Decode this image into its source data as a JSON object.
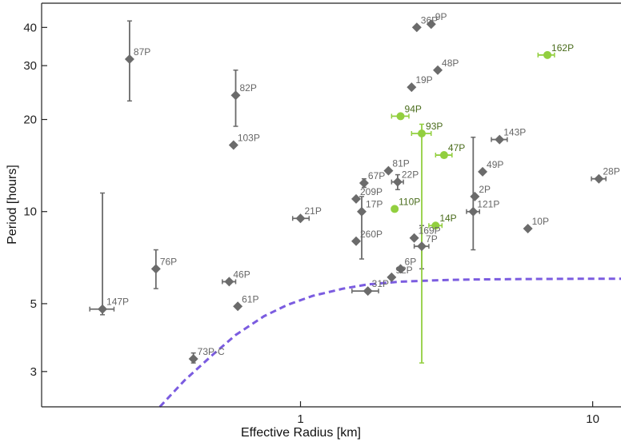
{
  "chart_data": {
    "type": "scatter",
    "xlabel": "Effective Radius [km]",
    "ylabel": "Period [hours]",
    "x_scale": "log",
    "y_scale": "log",
    "xlim": [
      0.13,
      12.5
    ],
    "ylim": [
      2.3,
      48
    ],
    "x_ticks": [
      {
        "value": 1,
        "label": "1"
      },
      {
        "value": 10,
        "label": "10"
      }
    ],
    "y_ticks": [
      {
        "value": 3,
        "label": "3"
      },
      {
        "value": 5,
        "label": "5"
      },
      {
        "value": 10,
        "label": "10"
      },
      {
        "value": 20,
        "label": "20"
      },
      {
        "value": 30,
        "label": "30"
      },
      {
        "value": 40,
        "label": "40"
      }
    ],
    "colors": {
      "gray_series": "#6b6b6b",
      "gray_label": "#666666",
      "green_series": "#92cf3f",
      "green_label": "#4a6c1c",
      "curve": "#7b5ce0"
    },
    "series": [
      {
        "marker": "diamond",
        "color": "#6b6b6b",
        "points": [
          {
            "label": "87P",
            "x": 0.26,
            "y": 31.5,
            "yerr": [
              23,
              42
            ]
          },
          {
            "label": "82P",
            "x": 0.6,
            "y": 24,
            "yerr": [
              19,
              29
            ]
          },
          {
            "label": "103P",
            "x": 0.59,
            "y": 16.5
          },
          {
            "label": "147P",
            "x": 0.21,
            "y": 4.8,
            "xerr": [
              0.19,
              0.23
            ],
            "yerr": [
              4.6,
              11.5
            ]
          },
          {
            "label": "76P",
            "x": 0.32,
            "y": 6.5,
            "yerr": [
              5.6,
              7.5
            ]
          },
          {
            "label": "46P",
            "x": 0.57,
            "y": 5.9,
            "xerr": [
              0.54,
              0.6
            ]
          },
          {
            "label": "61P",
            "x": 0.61,
            "y": 4.9
          },
          {
            "label": "73P-C",
            "x": 0.43,
            "y": 3.3,
            "yerr": [
              3.2,
              3.45
            ]
          },
          {
            "label": "21P",
            "x": 1.0,
            "y": 9.5,
            "xerr": [
              0.94,
              1.07
            ]
          },
          {
            "label": "209P",
            "x": 1.55,
            "y": 11
          },
          {
            "label": "67P",
            "x": 1.65,
            "y": 12.4,
            "yerr": [
              12.0,
              12.8
            ]
          },
          {
            "label": "17P",
            "x": 1.62,
            "y": 10,
            "yerr": [
              7.0,
              11.2
            ]
          },
          {
            "label": "260P",
            "x": 1.55,
            "y": 8
          },
          {
            "label": "81P",
            "x": 2.0,
            "y": 13.6
          },
          {
            "label": "22P",
            "x": 2.15,
            "y": 12.5,
            "xerr": [
              2.05,
              2.25
            ],
            "yerr": [
              11.8,
              13.2
            ]
          },
          {
            "label": "31P",
            "x": 1.7,
            "y": 5.5,
            "xerr": [
              1.5,
              1.85
            ]
          },
          {
            "label": "92P",
            "x": 2.05,
            "y": 6.1
          },
          {
            "label": "6P",
            "x": 2.2,
            "y": 6.5
          },
          {
            "label": "169P",
            "x": 2.45,
            "y": 8.2
          },
          {
            "label": "7P",
            "x": 2.6,
            "y": 7.7,
            "xerr": [
              2.45,
              2.75
            ],
            "yerr": [
              6.5,
              9.0
            ]
          },
          {
            "label": "36P",
            "x": 2.5,
            "y": 40
          },
          {
            "label": "9P",
            "x": 2.8,
            "y": 41
          },
          {
            "label": "48P",
            "x": 2.95,
            "y": 29
          },
          {
            "label": "19P",
            "x": 2.4,
            "y": 25.5
          },
          {
            "label": "121P",
            "x": 3.9,
            "y": 10,
            "xerr": [
              3.7,
              4.1
            ],
            "yerr": [
              7.5,
              17.5
            ]
          },
          {
            "label": "2P",
            "x": 3.95,
            "y": 11.2
          },
          {
            "label": "49P",
            "x": 4.2,
            "y": 13.5
          },
          {
            "label": "143P",
            "x": 4.8,
            "y": 17.2,
            "xerr": [
              4.5,
              5.1
            ]
          },
          {
            "label": "10P",
            "x": 6.0,
            "y": 8.8
          },
          {
            "label": "28P",
            "x": 10.5,
            "y": 12.8,
            "xerr": [
              9.9,
              11.1
            ]
          }
        ]
      },
      {
        "marker": "circle",
        "color": "#92cf3f",
        "points": [
          {
            "label": "162P",
            "x": 7.0,
            "y": 32.5,
            "xerr": [
              6.5,
              7.4
            ]
          },
          {
            "label": "94P",
            "x": 2.2,
            "y": 20.5,
            "xerr": [
              2.05,
              2.35
            ]
          },
          {
            "label": "93P",
            "x": 2.6,
            "y": 18,
            "xerr": [
              2.4,
              2.8
            ],
            "yerr": [
              3.2,
              19.3
            ]
          },
          {
            "label": "47P",
            "x": 3.1,
            "y": 15.3,
            "xerr": [
              2.9,
              3.3
            ]
          },
          {
            "label": "110P",
            "x": 2.1,
            "y": 10.2
          },
          {
            "label": "14P",
            "x": 2.9,
            "y": 9.0,
            "xerr": [
              2.75,
              3.05
            ]
          }
        ]
      }
    ],
    "curve": {
      "style": "dashed",
      "color": "#7b5ce0",
      "x": [
        0.33,
        0.4,
        0.5,
        0.6,
        0.75,
        0.9,
        1.1,
        1.4,
        1.7,
        2.2,
        3,
        4,
        6,
        9,
        12.5
      ],
      "y": [
        2.3,
        2.8,
        3.4,
        3.95,
        4.55,
        4.95,
        5.3,
        5.6,
        5.78,
        5.9,
        5.97,
        6.0,
        6.02,
        6.03,
        6.03
      ]
    }
  }
}
